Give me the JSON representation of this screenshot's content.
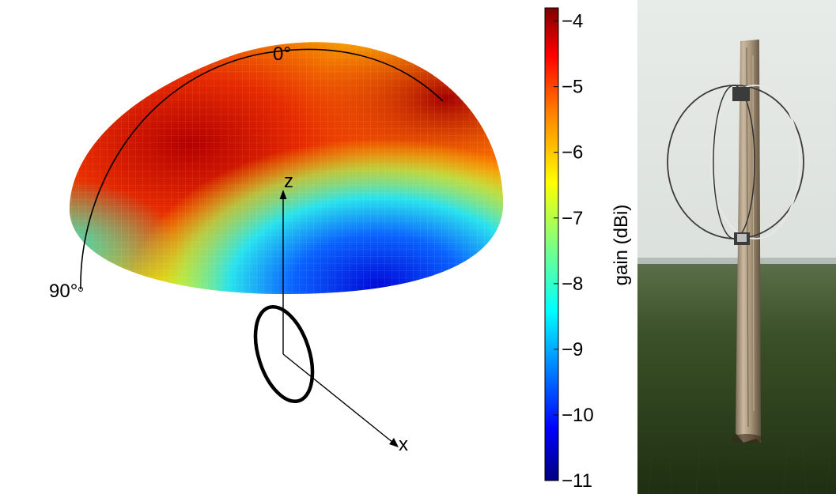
{
  "pattern_plot": {
    "angle_label_top": "0°",
    "angle_label_side": "90°",
    "axis_z_label": "z",
    "axis_x_label": "x"
  },
  "colorbar": {
    "label": "gain (dBi)",
    "min": -11,
    "max": -3.8,
    "ticks": [
      "−4",
      "−5",
      "−6",
      "−7",
      "−8",
      "−9",
      "−10",
      "−11"
    ],
    "tick_values": [
      -4,
      -5,
      -6,
      -7,
      -8,
      -9,
      -10,
      -11
    ],
    "colormap": [
      "#00007f",
      "#0000ff",
      "#007fff",
      "#00ffff",
      "#7fff7f",
      "#ffff00",
      "#ff7f00",
      "#ff0000",
      "#7f0000"
    ]
  },
  "photo": {
    "description_icon": "antenna-photo"
  }
}
